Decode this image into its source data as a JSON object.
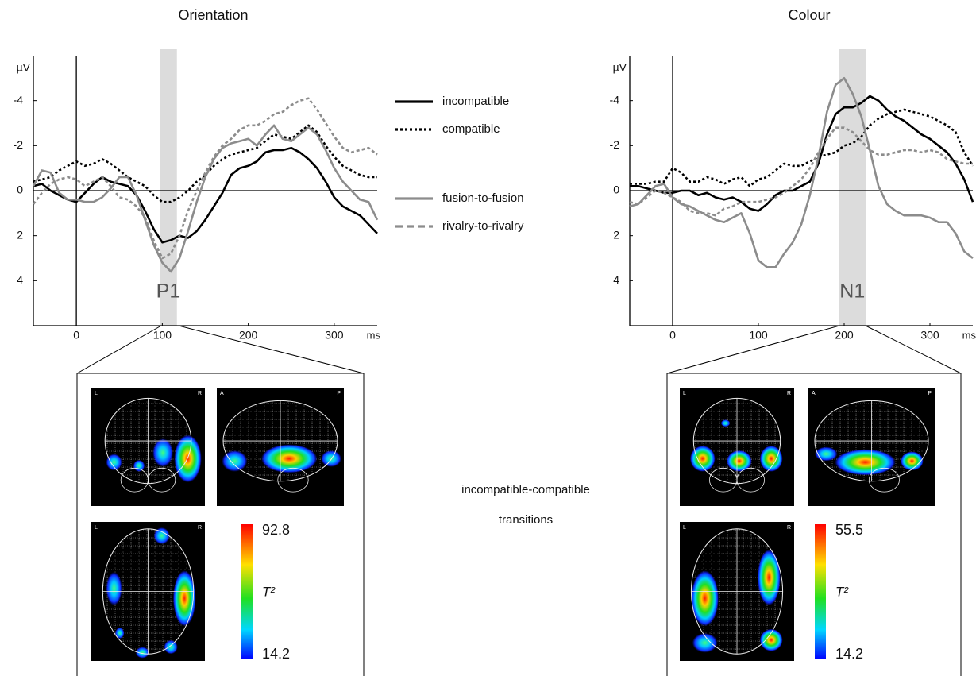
{
  "chart_data": [
    {
      "type": "line",
      "title": "Orientation",
      "y_label": "µV",
      "x_label": "ms",
      "xlim": [
        -50,
        350
      ],
      "xticks": [
        0,
        100,
        200,
        300
      ],
      "ylim": [
        6,
        -6
      ],
      "yticks": [
        -4,
        -2,
        0,
        2,
        4
      ],
      "highlight": {
        "range": [
          97,
          117
        ],
        "label": "P1"
      },
      "x": [
        -50,
        -40,
        -30,
        -20,
        -10,
        0,
        10,
        20,
        30,
        40,
        50,
        60,
        70,
        80,
        90,
        100,
        110,
        120,
        130,
        140,
        150,
        160,
        170,
        180,
        190,
        200,
        210,
        220,
        230,
        240,
        250,
        260,
        270,
        280,
        290,
        300,
        310,
        320,
        330,
        340,
        350
      ],
      "series": [
        {
          "name": "incompatible",
          "color": "#000000",
          "dash": "solid",
          "values": [
            -0.2,
            -0.3,
            0,
            0.2,
            0.4,
            0.5,
            0.1,
            -0.3,
            -0.6,
            -0.4,
            -0.3,
            -0.2,
            0.2,
            0.9,
            1.7,
            2.3,
            2.2,
            2.0,
            2.1,
            1.8,
            1.3,
            0.7,
            0.1,
            -0.7,
            -1.0,
            -1.1,
            -1.3,
            -1.7,
            -1.8,
            -1.8,
            -1.9,
            -1.7,
            -1.4,
            -1.0,
            -0.4,
            0.3,
            0.7,
            0.9,
            1.1,
            1.5,
            1.9
          ]
        },
        {
          "name": "compatible",
          "color": "#000000",
          "dash": "dotted",
          "values": [
            -0.4,
            -0.5,
            -0.6,
            -0.9,
            -1.1,
            -1.3,
            -1.1,
            -1.2,
            -1.4,
            -1.2,
            -0.9,
            -0.6,
            -0.4,
            -0.2,
            0.2,
            0.5,
            0.5,
            0.3,
            0.0,
            -0.4,
            -0.7,
            -1.1,
            -1.4,
            -1.6,
            -1.7,
            -1.8,
            -1.9,
            -2.2,
            -2.5,
            -2.4,
            -2.3,
            -2.6,
            -2.9,
            -2.6,
            -2.0,
            -1.5,
            -1.1,
            -0.9,
            -0.7,
            -0.6,
            -0.6
          ]
        },
        {
          "name": "fusion-to-fusion",
          "color": "#8c8c8c",
          "dash": "solid",
          "values": [
            -0.2,
            -0.9,
            -0.8,
            0.1,
            0.4,
            0.4,
            0.5,
            0.5,
            0.3,
            -0.1,
            -0.6,
            -0.6,
            0.2,
            1.3,
            2.4,
            3.2,
            3.6,
            3.0,
            1.8,
            0.5,
            -0.6,
            -1.4,
            -1.9,
            -2.1,
            -2.2,
            -2.3,
            -2.0,
            -2.5,
            -2.9,
            -2.3,
            -2.2,
            -2.5,
            -2.8,
            -2.5,
            -1.8,
            -1.0,
            -0.4,
            0.0,
            0.4,
            0.5,
            1.3
          ]
        },
        {
          "name": "rivalry-to-rivalry",
          "color": "#8c8c8c",
          "dash": "dashed",
          "values": [
            0.6,
            0.1,
            -0.3,
            -0.5,
            -0.6,
            -0.5,
            -0.2,
            -0.4,
            -0.6,
            -0.2,
            0.3,
            0.4,
            0.7,
            1.2,
            2.2,
            3.0,
            2.8,
            2.0,
            0.9,
            0.0,
            -0.8,
            -1.5,
            -2.0,
            -2.3,
            -2.7,
            -2.9,
            -2.9,
            -3.1,
            -3.4,
            -3.5,
            -3.8,
            -4.0,
            -4.1,
            -3.6,
            -3.0,
            -2.4,
            -1.9,
            -1.7,
            -1.8,
            -1.9,
            -1.6
          ]
        }
      ]
    },
    {
      "type": "line",
      "title": "Colour",
      "y_label": "µV",
      "x_label": "ms",
      "xlim": [
        -50,
        350
      ],
      "xticks": [
        0,
        100,
        200,
        300
      ],
      "ylim": [
        6,
        -6
      ],
      "yticks": [
        -4,
        -2,
        0,
        2,
        4
      ],
      "highlight": {
        "range": [
          194,
          225
        ],
        "label": "N1"
      },
      "x": [
        -50,
        -40,
        -30,
        -20,
        -10,
        0,
        10,
        20,
        30,
        40,
        50,
        60,
        70,
        80,
        90,
        100,
        110,
        120,
        130,
        140,
        150,
        160,
        170,
        180,
        190,
        200,
        210,
        220,
        230,
        240,
        250,
        260,
        270,
        280,
        290,
        300,
        310,
        320,
        330,
        340,
        350
      ],
      "series": [
        {
          "color": "#000000",
          "dash": "solid",
          "values": [
            -0.2,
            -0.2,
            -0.1,
            0.0,
            0.1,
            0.1,
            0.0,
            0.0,
            0.2,
            0.1,
            0.3,
            0.4,
            0.3,
            0.5,
            0.8,
            0.9,
            0.6,
            0.2,
            0.0,
            0.0,
            -0.2,
            -0.4,
            -1.2,
            -2.5,
            -3.4,
            -3.7,
            -3.7,
            -3.9,
            -4.2,
            -4.0,
            -3.6,
            -3.3,
            -3.1,
            -2.8,
            -2.5,
            -2.3,
            -2.0,
            -1.7,
            -1.2,
            -0.5,
            0.5
          ]
        },
        {
          "color": "#000000",
          "dash": "dotted",
          "values": [
            -0.3,
            -0.3,
            -0.3,
            -0.4,
            -0.4,
            -1.0,
            -0.8,
            -0.4,
            -0.4,
            -0.6,
            -0.5,
            -0.3,
            -0.5,
            -0.6,
            -0.2,
            -0.5,
            -0.6,
            -0.9,
            -1.2,
            -1.1,
            -1.1,
            -1.3,
            -1.5,
            -1.6,
            -1.7,
            -2.0,
            -2.1,
            -2.4,
            -2.9,
            -3.2,
            -3.4,
            -3.5,
            -3.6,
            -3.5,
            -3.4,
            -3.3,
            -3.1,
            -2.9,
            -2.6,
            -1.7,
            -1.1
          ]
        },
        {
          "color": "#8c8c8c",
          "dash": "solid",
          "values": [
            0.7,
            0.6,
            0.2,
            -0.2,
            -0.3,
            0.3,
            0.6,
            0.7,
            0.9,
            1.1,
            1.3,
            1.4,
            1.2,
            1.0,
            1.9,
            3.1,
            3.4,
            3.4,
            2.8,
            2.3,
            1.5,
            0.2,
            -1.5,
            -3.5,
            -4.7,
            -5.0,
            -4.3,
            -3.3,
            -1.8,
            -0.2,
            0.6,
            0.9,
            1.1,
            1.1,
            1.1,
            1.2,
            1.4,
            1.4,
            1.9,
            2.7,
            3.0
          ]
        },
        {
          "color": "#8c8c8c",
          "dash": "dashed",
          "values": [
            0.5,
            0.6,
            0.3,
            0.0,
            0.1,
            0.3,
            0.5,
            0.9,
            1.0,
            1.0,
            1.1,
            0.8,
            0.7,
            0.5,
            0.5,
            0.5,
            0.4,
            0.3,
            0.1,
            -0.2,
            -0.5,
            -1.0,
            -1.7,
            -2.3,
            -2.8,
            -2.8,
            -2.6,
            -2.2,
            -1.8,
            -1.6,
            -1.6,
            -1.7,
            -1.8,
            -1.8,
            -1.7,
            -1.8,
            -1.7,
            -1.4,
            -1.3,
            -1.2,
            -1.2
          ]
        }
      ]
    }
  ],
  "caption": "incompatible-compatible transitions",
  "brain_maps": [
    {
      "coronal": [
        "L",
        "R"
      ],
      "sagittal": [
        "A",
        "P"
      ],
      "axial": [
        "L",
        "R"
      ],
      "colorbar": {
        "max": 92.8,
        "label": "T²",
        "min": 14.2
      }
    },
    {
      "coronal": [
        "L",
        "R"
      ],
      "sagittal": [
        "A",
        "P"
      ],
      "axial": [
        "L",
        "R"
      ],
      "colorbar": {
        "max": 55.5,
        "label": "T²",
        "min": 14.2
      }
    }
  ]
}
